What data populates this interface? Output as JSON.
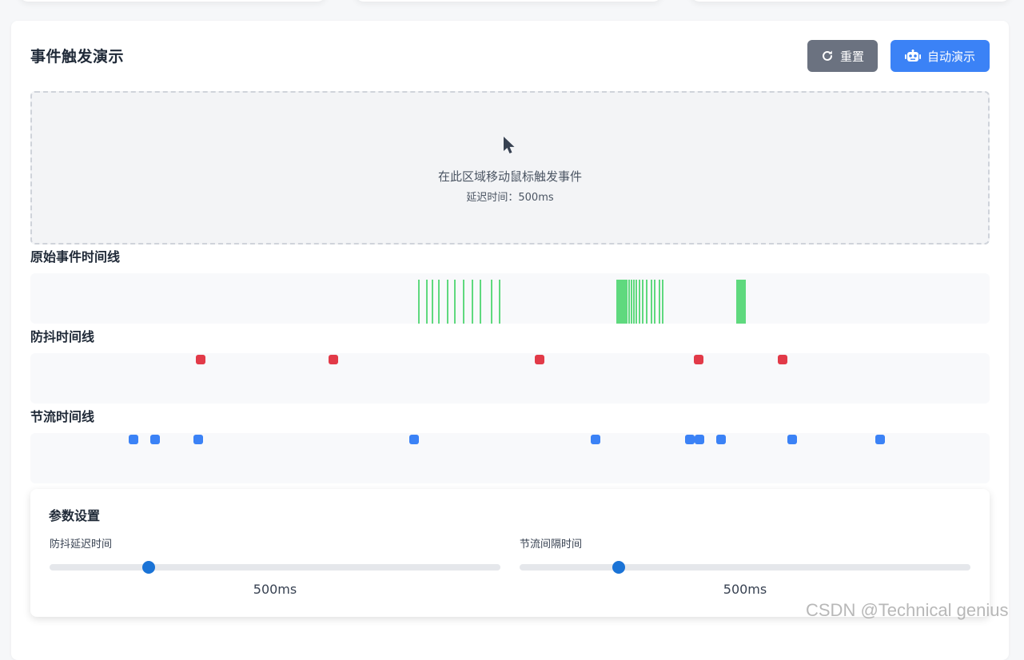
{
  "card": {
    "title": "事件触发演示",
    "reset_label": "重置",
    "auto_label": "自动演示"
  },
  "zone": {
    "hint": "在此区域移动鼠标触发事件",
    "delay_text": "延迟时间：500ms"
  },
  "timelines": {
    "raw_label": "原始事件时间线",
    "debounce_label": "防抖时间线",
    "throttle_label": "节流时间线"
  },
  "params": {
    "title": "参数设置",
    "debounce_label": "防抖延迟时间",
    "debounce_value": "500ms",
    "debounce_fraction": 0.22,
    "throttle_label": "节流间隔时间",
    "throttle_value": "500ms",
    "throttle_fraction": 0.22
  },
  "colors": {
    "raw": "#5fd97e",
    "debounce": "#e23a48",
    "throttle": "#3b82f6"
  },
  "watermark": "CSDN @Technical genius"
}
